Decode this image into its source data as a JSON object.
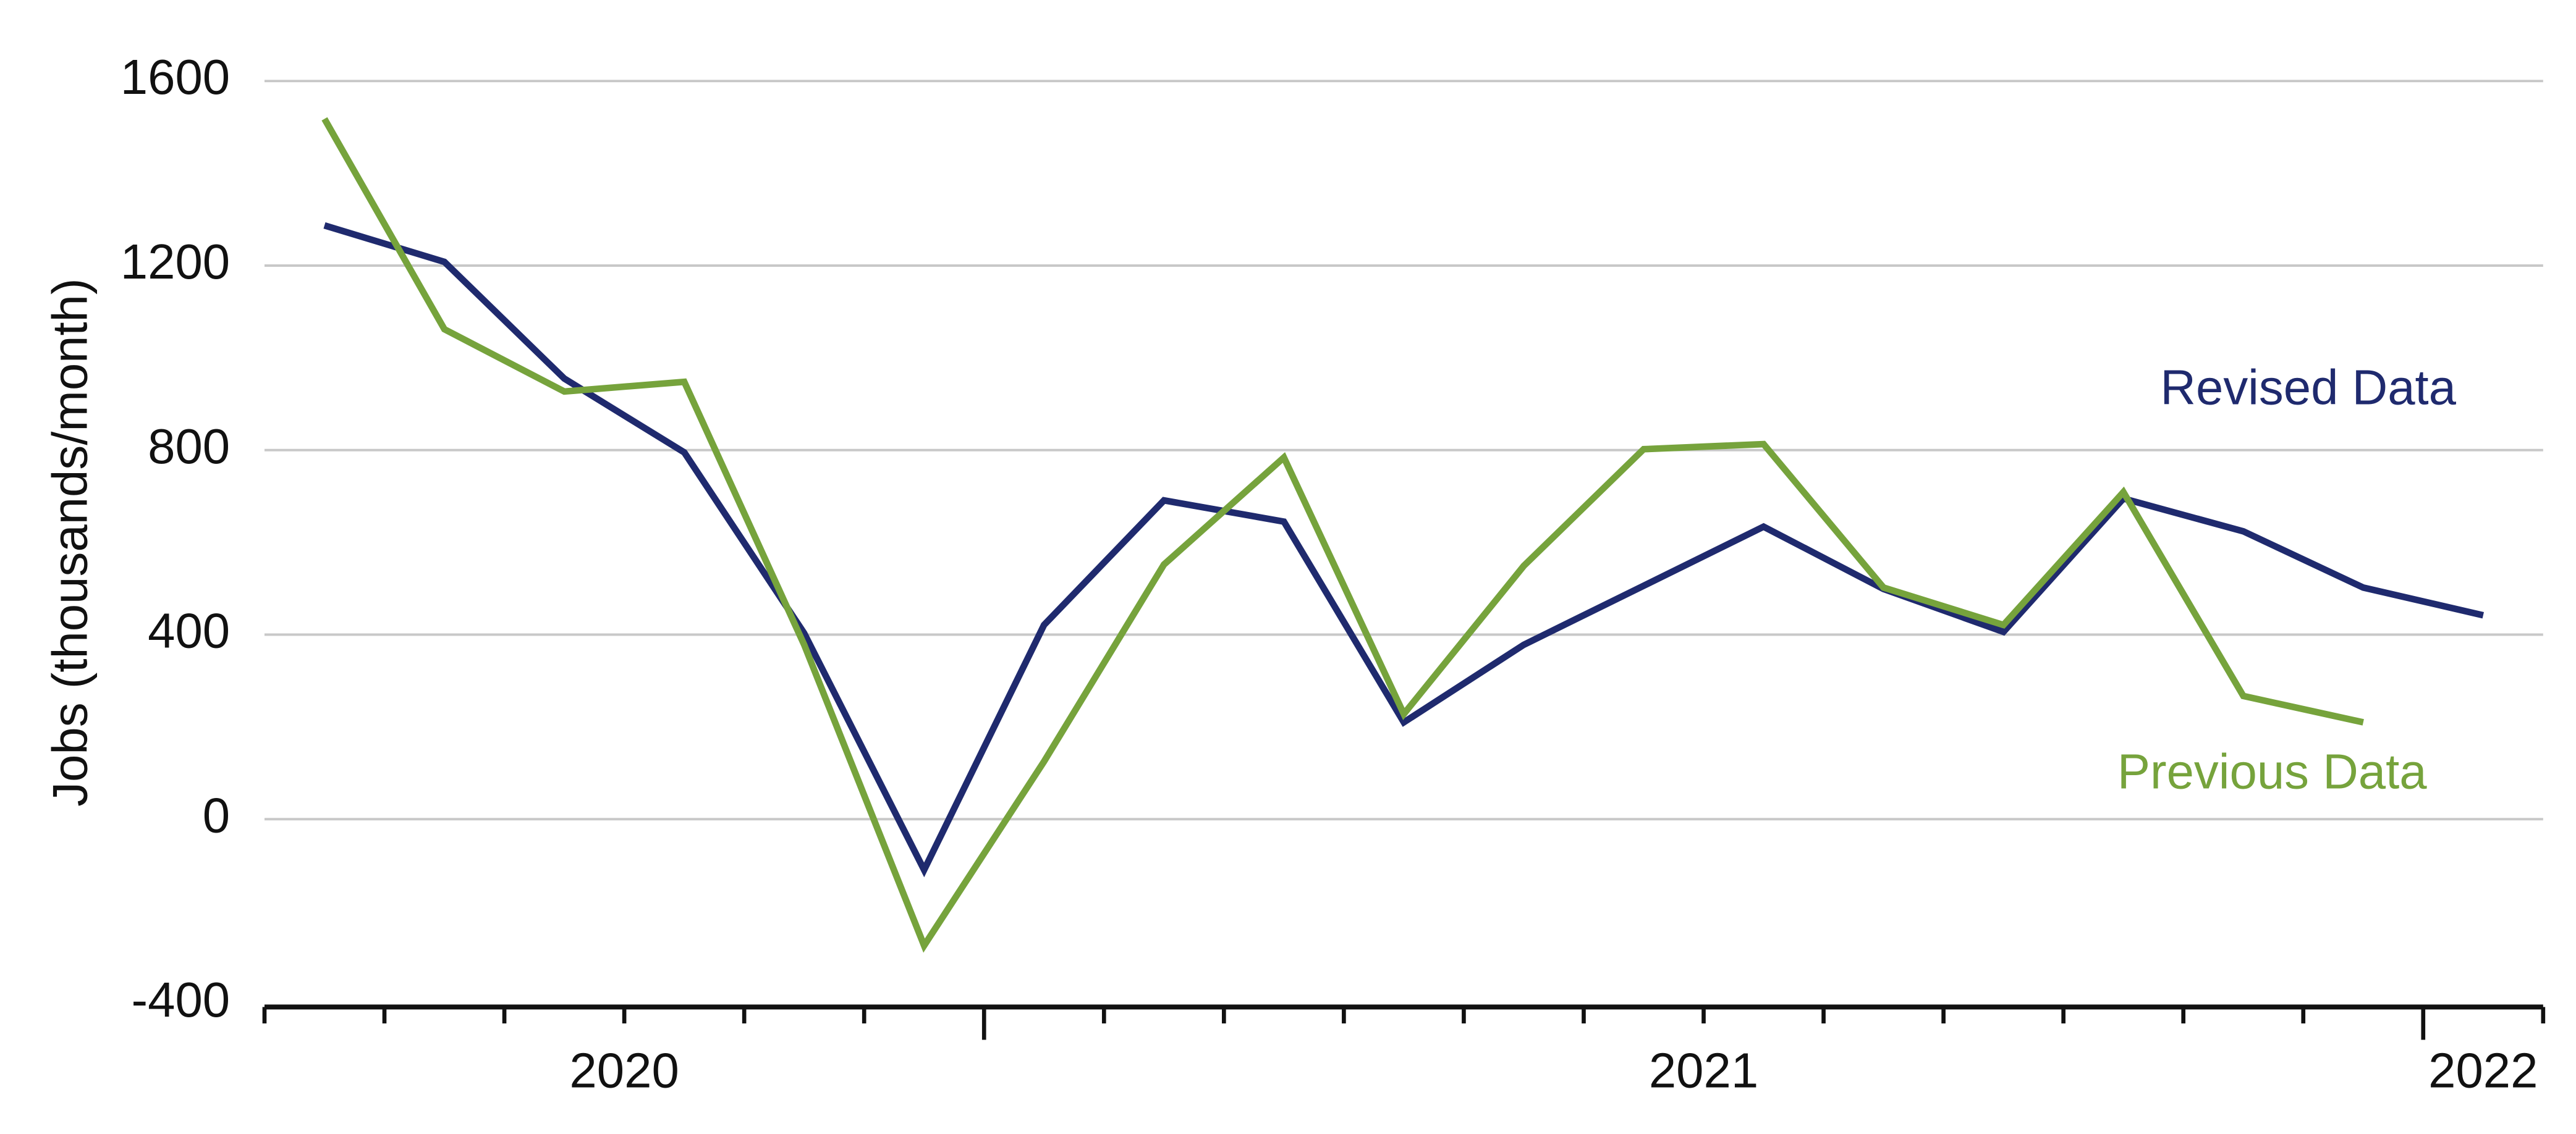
{
  "chart_data": {
    "type": "line",
    "y_label": "Jobs (thousands/month)",
    "categories": [
      null,
      null,
      null,
      null,
      null,
      null,
      null,
      null,
      null,
      null,
      null,
      null,
      null,
      null,
      null,
      null,
      null,
      null,
      null
    ],
    "x_groups": [
      {
        "label": "2020",
        "count": 6
      },
      {
        "label": "2021",
        "count": 12
      },
      {
        "label": "2022",
        "count": 1
      }
    ],
    "series": [
      {
        "name": "Revised Data",
        "color": "#1f2a6e",
        "values": [
          1287,
          1208,
          955,
          795,
          403,
          -110,
          421,
          691,
          645,
          210,
          378,
          506,
          634,
          499,
          406,
          695,
          624,
          502,
          442
        ]
      },
      {
        "name": "Previous Data",
        "color": "#76a33c",
        "values": [
          1518,
          1062,
          927,
          948,
          378,
          -274,
          125,
          552,
          784,
          228,
          549,
          802,
          813,
          502,
          421,
          709,
          267,
          210,
          null
        ]
      }
    ],
    "ylim": [
      -400,
      1600
    ],
    "yticks": [
      -400,
      0,
      400,
      800,
      1200,
      1600
    ],
    "grid": true
  }
}
